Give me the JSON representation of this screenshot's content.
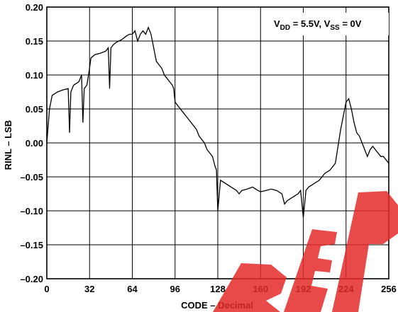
{
  "chart_data": {
    "type": "line",
    "title": "",
    "xlabel": "CODE – Decimal",
    "ylabel": "RINL – LSB",
    "xlim": [
      0,
      256
    ],
    "ylim": [
      -0.2,
      0.2
    ],
    "x_ticks": [
      0,
      32,
      64,
      96,
      128,
      160,
      192,
      224,
      256
    ],
    "x_tick_labels": [
      "0",
      "32",
      "64",
      "96",
      "128",
      "160",
      "192",
      "224",
      "256"
    ],
    "y_ticks": [
      0.2,
      0.15,
      0.1,
      0.05,
      0.0,
      -0.05,
      -0.1,
      -0.15,
      -0.2
    ],
    "y_tick_labels": [
      "0.20",
      "0.15",
      "0.10",
      "0.05",
      "0.00",
      "–0.05",
      "–0.10",
      "–0.15",
      "–0.20"
    ],
    "grid": true,
    "annotation": {
      "v": "V",
      "dd_sub": "DD",
      "dd_value": " = 5.5V, V",
      "ss_sub": "SS",
      "ss_value": " = 0V"
    },
    "watermark_text": "REPV",
    "series": [
      {
        "name": "",
        "color": "#000000",
        "x": [
          0,
          2,
          4,
          8,
          12,
          16,
          17,
          18,
          20,
          24,
          26,
          27,
          28,
          30,
          32,
          33,
          36,
          40,
          44,
          46,
          47,
          48,
          50,
          52,
          54,
          56,
          58,
          60,
          62,
          64,
          66,
          68,
          70,
          72,
          74,
          76,
          78,
          80,
          82,
          84,
          86,
          88,
          90,
          92,
          94,
          95,
          96,
          98,
          100,
          102,
          104,
          106,
          108,
          110,
          112,
          114,
          116,
          118,
          120,
          122,
          124,
          126,
          127,
          128,
          130,
          134,
          138,
          142,
          144,
          146,
          150,
          154,
          158,
          160,
          164,
          168,
          172,
          176,
          178,
          180,
          184,
          188,
          190,
          192,
          194,
          196,
          200,
          204,
          206,
          208,
          212,
          216,
          220,
          222,
          224,
          226,
          228,
          230,
          232,
          234,
          236,
          238,
          240,
          242,
          244,
          246,
          248,
          250,
          252,
          254,
          256
        ],
        "y": [
          0.0,
          0.05,
          0.07,
          0.075,
          0.078,
          0.08,
          0.015,
          0.075,
          0.085,
          0.09,
          0.1,
          0.03,
          0.08,
          0.085,
          0.11,
          0.125,
          0.13,
          0.132,
          0.135,
          0.14,
          0.08,
          0.14,
          0.145,
          0.148,
          0.15,
          0.152,
          0.155,
          0.158,
          0.16,
          0.16,
          0.165,
          0.15,
          0.16,
          0.165,
          0.16,
          0.17,
          0.16,
          0.14,
          0.12,
          0.115,
          0.11,
          0.1,
          0.095,
          0.09,
          0.085,
          0.08,
          0.06,
          0.055,
          0.05,
          0.045,
          0.04,
          0.035,
          0.03,
          0.025,
          0.02,
          0.01,
          0.005,
          0.0,
          -0.01,
          -0.015,
          -0.02,
          -0.035,
          -0.04,
          -0.1,
          -0.055,
          -0.06,
          -0.065,
          -0.07,
          -0.075,
          -0.07,
          -0.068,
          -0.065,
          -0.07,
          -0.072,
          -0.07,
          -0.068,
          -0.07,
          -0.075,
          -0.09,
          -0.085,
          -0.08,
          -0.075,
          -0.07,
          -0.11,
          -0.07,
          -0.065,
          -0.06,
          -0.055,
          -0.05,
          -0.045,
          -0.04,
          -0.03,
          0.02,
          0.04,
          0.06,
          0.065,
          0.05,
          0.03,
          0.015,
          0.01,
          0.0,
          -0.01,
          -0.02,
          -0.01,
          -0.005,
          -0.01,
          -0.015,
          -0.02,
          -0.02,
          -0.025,
          -0.03
        ]
      }
    ]
  }
}
